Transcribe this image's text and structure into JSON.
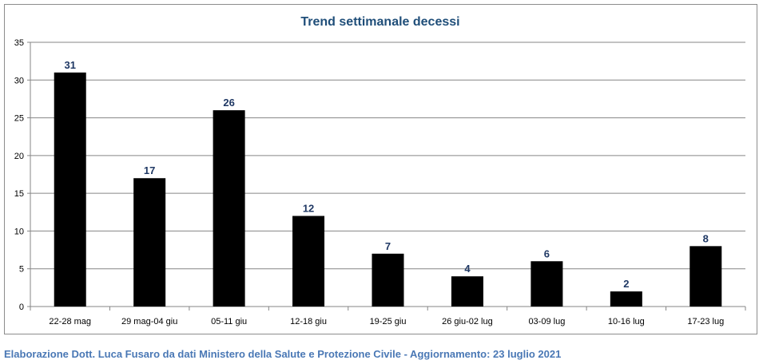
{
  "chart_data": {
    "type": "bar",
    "title": "Trend settimanale decessi",
    "categories": [
      "22-28 mag",
      "29 mag-04 giu",
      "05-11 giu",
      "12-18 giu",
      "19-25 giu",
      "26 giu-02 lug",
      "03-09 lug",
      "10-16 lug",
      "17-23 lug"
    ],
    "values": [
      31,
      17,
      26,
      12,
      7,
      4,
      6,
      2,
      8
    ],
    "data_labels": [
      "31",
      "17",
      "26",
      "12",
      "7",
      "4",
      "6",
      "2",
      "8"
    ],
    "y_ticks": [
      "0",
      "5",
      "10",
      "15",
      "20",
      "25",
      "30",
      "35"
    ],
    "ylim": [
      0,
      35
    ],
    "xlabel": "",
    "ylabel": "",
    "grid": true,
    "legend": "none",
    "colors": {
      "bar": "#000000",
      "title": "#1f4e79",
      "data_label": "#1f3864",
      "grid": "#868686"
    }
  },
  "footer": {
    "caption": "Elaborazione Dott. Luca Fusaro da dati Ministero della Salute e Protezione Civile - Aggiornamento: 23 luglio 2021"
  }
}
